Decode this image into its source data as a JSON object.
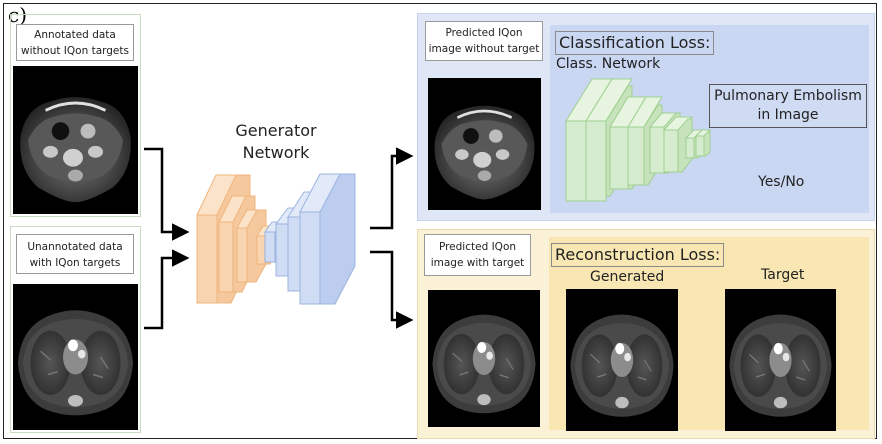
{
  "panel_label": "c)",
  "inputs": {
    "annotated_label_line1": "Annotated data",
    "annotated_label_line2": "without IQon targets",
    "unannotated_label_line1": "Unannotated data",
    "unannotated_label_line2": "with IQon targets"
  },
  "generator": {
    "title_line1": "Generator",
    "title_line2": "Network"
  },
  "classification": {
    "predicted_label_line1": "Predicted IQon",
    "predicted_label_line2": "image without target",
    "loss_title": "Classification Loss:",
    "network_label": "Class. Network",
    "output_line1": "Pulmonary Embolism",
    "output_line2": "in Image",
    "answer": "Yes/No"
  },
  "reconstruction": {
    "predicted_label_line1": "Predicted IQon",
    "predicted_label_line2": "image with target",
    "loss_title": "Reconstruction Loss:",
    "generated_label": "Generated",
    "target_label": "Target"
  },
  "colors": {
    "input_panel_border": "#c9dcc3",
    "encoder_orange": "#f8d5b0",
    "decoder_blue": "#cfdcf4",
    "classifier_green": "#d6ecce",
    "blue_panel": "#dfe7f7",
    "yellow_panel": "#fbf1d6"
  }
}
